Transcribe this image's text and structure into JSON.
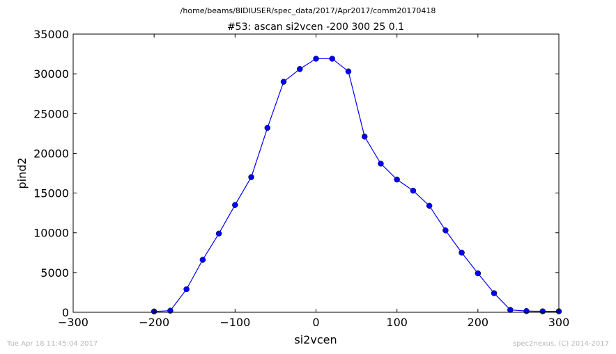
{
  "header": {
    "path": "/home/beams/8IDIUSER/spec_data/2017/Apr2017/comm20170418"
  },
  "footer": {
    "timestamp": "Tue Apr 18 11:45:04 2017",
    "credit": "spec2nexus, (C) 2014-2017"
  },
  "chart_data": {
    "type": "line",
    "title": "#53: ascan  si2vcen -200 300  25 0.1",
    "xlabel": "si2vcen",
    "ylabel": "pind2",
    "xlim": [
      -300,
      300
    ],
    "ylim": [
      0,
      35000
    ],
    "xticks": [
      -300,
      -200,
      -100,
      0,
      100,
      200,
      300
    ],
    "yticks": [
      0,
      5000,
      10000,
      15000,
      20000,
      25000,
      30000,
      35000
    ],
    "xtick_labels": [
      "−300",
      "−200",
      "−100",
      "0",
      "100",
      "200",
      "300"
    ],
    "ytick_labels": [
      "0",
      "5000",
      "10000",
      "15000",
      "20000",
      "25000",
      "30000",
      "35000"
    ],
    "grid": false,
    "color": "#0000ff",
    "marker": "circle",
    "series": [
      {
        "x": [
          -200,
          -180,
          -160,
          -140,
          -120,
          -100,
          -80,
          -60,
          -40,
          -20,
          0,
          20,
          40,
          60,
          80,
          100,
          120,
          140,
          160,
          180,
          200,
          220,
          240,
          260,
          280,
          300
        ],
        "y": [
          100,
          200,
          2900,
          6600,
          9900,
          13500,
          17000,
          23200,
          29000,
          30600,
          31900,
          31900,
          30300,
          22100,
          18700,
          16700,
          15300,
          13400,
          10300,
          7500,
          4900,
          2400,
          300,
          150,
          120,
          120
        ]
      }
    ]
  }
}
